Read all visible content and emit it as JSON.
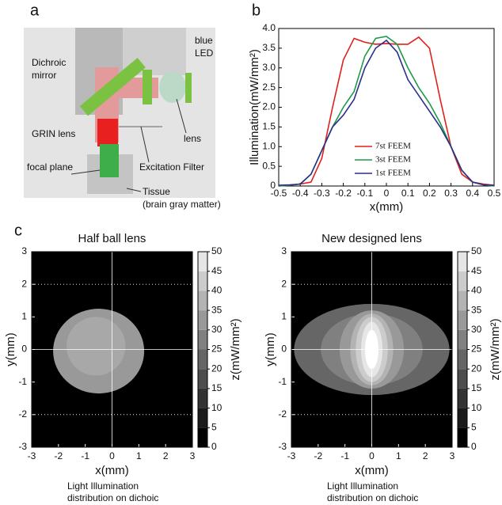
{
  "diagram": {
    "panel_label": "a",
    "labels": [
      [
        "blue",
        "LED"
      ],
      [
        "Dichroic",
        "mirror"
      ],
      [
        "GRIN lens"
      ],
      [
        "lens"
      ],
      [
        "focal plane"
      ],
      [
        "Excitation Filter"
      ],
      [
        "Tissue",
        "(brain gray matter)"
      ]
    ]
  },
  "chart_data": [
    {
      "type": "line",
      "panel_label": "b",
      "xlabel": "x(mm)",
      "ylabel": "Illumination(mW/mm²)",
      "x": [
        -0.5,
        -0.45,
        -0.4,
        -0.35,
        -0.3,
        -0.25,
        -0.2,
        -0.15,
        -0.1,
        -0.05,
        0,
        0.05,
        0.1,
        0.15,
        0.2,
        0.25,
        0.3,
        0.35,
        0.4,
        0.45,
        0.5
      ],
      "series": [
        {
          "name": "7st FEEM",
          "color": "#e0201b",
          "values": [
            0,
            0.02,
            0.05,
            0.1,
            0.7,
            2.0,
            3.2,
            3.75,
            3.65,
            3.6,
            3.62,
            3.6,
            3.6,
            3.78,
            3.5,
            2.2,
            1.0,
            0.3,
            0.1,
            0.05,
            0.02
          ]
        },
        {
          "name": "3st FEEM",
          "color": "#1f9a4a",
          "values": [
            0,
            0.02,
            0.05,
            0.3,
            0.9,
            1.5,
            2.0,
            2.4,
            3.3,
            3.75,
            3.8,
            3.6,
            3.0,
            2.5,
            2.1,
            1.6,
            1.0,
            0.4,
            0.1,
            0.03,
            0
          ]
        },
        {
          "name": "1st FEEM",
          "color": "#2b2f8c",
          "values": [
            0.02,
            0.03,
            0.05,
            0.3,
            0.9,
            1.5,
            1.8,
            2.2,
            3.0,
            3.5,
            3.7,
            3.4,
            2.7,
            2.3,
            1.9,
            1.5,
            1.0,
            0.4,
            0.1,
            0.03,
            0.02
          ]
        }
      ],
      "xlim": [
        -0.5,
        0.5
      ],
      "xticks": [
        -0.5,
        -0.4,
        -0.3,
        -0.2,
        -0.1,
        0,
        0.1,
        0.2,
        0.3,
        0.4,
        0.5
      ],
      "ylim": [
        0,
        4.0
      ],
      "yticks": [
        0,
        0.5,
        {
          "value": 1.0,
          "label": "1.0"
        },
        1.5,
        {
          "value": 2.0,
          "label": "2.0"
        },
        2.5,
        {
          "value": 3.0,
          "label": "3.0"
        },
        3.5,
        {
          "value": 4.0,
          "label": "4.0"
        }
      ]
    },
    {
      "type": "heatmap",
      "panel_label": "c",
      "title": "Half ball lens",
      "xlabel": "x(mm)",
      "ylabel": "y(mm)",
      "zlabel": "z(mW/mm²)",
      "caption": [
        "Light Illumination",
        "distribution on dichoic"
      ],
      "regions": [
        {
          "z": 30,
          "cx": -0.5,
          "cy": -0.05,
          "rx": 1.7,
          "ry": 1.3
        },
        {
          "z": 33,
          "cx": -0.6,
          "cy": 0.1,
          "rx": 1.1,
          "ry": 0.9
        }
      ],
      "xlim": [
        -3,
        3
      ],
      "xticks": [
        -3,
        -2,
        -1,
        0,
        1,
        2,
        3
      ],
      "ylim": [
        -3,
        3
      ],
      "yticks": [
        -3,
        -2,
        -1,
        0,
        1,
        2,
        3
      ],
      "zlim": [
        0,
        50
      ],
      "zticks": [
        0,
        5,
        10,
        15,
        20,
        25,
        30,
        35,
        40,
        45,
        50
      ]
    },
    {
      "type": "heatmap",
      "title": "New designed lens",
      "xlabel": "x(mm)",
      "ylabel": "y(mm)",
      "zlabel": "z(mW/mm²)",
      "caption": [
        "Light Illumination",
        "distribution on dichoic"
      ],
      "regions": [
        {
          "z": 20,
          "cx": 0,
          "cy": 0,
          "rx": 2.9,
          "ry": 1.4
        },
        {
          "z": 25,
          "cx": 0,
          "cy": 0,
          "rx": 1.9,
          "ry": 1.1
        },
        {
          "z": 30,
          "cx": 0,
          "cy": 0,
          "rx": 1.2,
          "ry": 1.2
        },
        {
          "z": 35,
          "cx": 0,
          "cy": 0,
          "rx": 0.8,
          "ry": 1.1
        },
        {
          "z": 40,
          "cx": 0,
          "cy": 0,
          "rx": 0.6,
          "ry": 1.0
        },
        {
          "z": 45,
          "cx": 0,
          "cy": 0,
          "rx": 0.4,
          "ry": 0.85
        },
        {
          "z": 50,
          "cx": 0,
          "cy": 0,
          "rx": 0.25,
          "ry": 0.6
        }
      ],
      "xlim": [
        -3,
        3
      ],
      "xticks": [
        -3,
        -2,
        -1,
        0,
        1,
        2,
        3
      ],
      "ylim": [
        -3,
        3
      ],
      "yticks": [
        -3,
        -2,
        -1,
        0,
        1,
        2,
        3
      ],
      "zlim": [
        0,
        50
      ],
      "zticks": [
        0,
        5,
        10,
        15,
        20,
        25,
        30,
        35,
        40,
        45,
        50
      ]
    }
  ]
}
